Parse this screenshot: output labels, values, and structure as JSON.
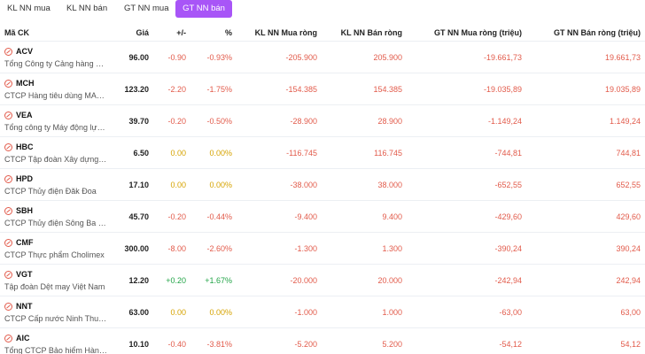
{
  "colors": {
    "accent": "#a855f7",
    "down": "#e25b4b",
    "ref": "#d6a300",
    "up": "#22a447"
  },
  "tabs": [
    {
      "label": "KL NN mua",
      "active": false
    },
    {
      "label": "KL NN bán",
      "active": false
    },
    {
      "label": "GT NN mua",
      "active": false
    },
    {
      "label": "GT NN bán",
      "active": true
    }
  ],
  "columns": [
    "Mã CK",
    "Giá",
    "+/-",
    "%",
    "KL NN Mua ròng",
    "KL NN Bán ròng",
    "GT NN Mua ròng (triệu)",
    "GT NN Bán ròng (triệu)"
  ],
  "rows": [
    {
      "code": "ACV",
      "name": "Tổng Công ty Cảng hàng không Việt Nam",
      "price": "96.00",
      "change": "-0.90",
      "pct": "-0.93%",
      "trend": "down",
      "buy": "-205.900",
      "sell": "205.900",
      "gbuy": "-19.661,73",
      "gsell": "19.661,73"
    },
    {
      "code": "MCH",
      "name": "CTCP Hàng tiêu dùng MASAN",
      "price": "123.20",
      "change": "-2.20",
      "pct": "-1.75%",
      "trend": "down",
      "buy": "-154.385",
      "sell": "154.385",
      "gbuy": "-19.035,89",
      "gsell": "19.035,89"
    },
    {
      "code": "VEA",
      "name": "Tổng công ty Máy động lực và Máy nông nghiệp",
      "price": "39.70",
      "change": "-0.20",
      "pct": "-0.50%",
      "trend": "down",
      "buy": "-28.900",
      "sell": "28.900",
      "gbuy": "-1.149,24",
      "gsell": "1.149,24"
    },
    {
      "code": "HBC",
      "name": "CTCP Tập đoàn Xây dựng Hòa Bình",
      "price": "6.50",
      "change": "0.00",
      "pct": "0.00%",
      "trend": "ref",
      "buy": "-116.745",
      "sell": "116.745",
      "gbuy": "-744,81",
      "gsell": "744,81"
    },
    {
      "code": "HPD",
      "name": "CTCP Thủy điện Đăk Đoa",
      "price": "17.10",
      "change": "0.00",
      "pct": "0.00%",
      "trend": "ref",
      "buy": "-38.000",
      "sell": "38.000",
      "gbuy": "-652,55",
      "gsell": "652,55"
    },
    {
      "code": "SBH",
      "name": "CTCP Thủy điện Sông Ba Hạ",
      "price": "45.70",
      "change": "-0.20",
      "pct": "-0.44%",
      "trend": "down",
      "buy": "-9.400",
      "sell": "9.400",
      "gbuy": "-429,60",
      "gsell": "429,60"
    },
    {
      "code": "CMF",
      "name": "CTCP Thực phẩm Cholimex",
      "price": "300.00",
      "change": "-8.00",
      "pct": "-2.60%",
      "trend": "down",
      "buy": "-1.300",
      "sell": "1.300",
      "gbuy": "-390,24",
      "gsell": "390,24"
    },
    {
      "code": "VGT",
      "name": "Tập đoàn Dệt may Việt Nam",
      "price": "12.20",
      "change": "+0.20",
      "pct": "+1.67%",
      "trend": "up",
      "buy": "-20.000",
      "sell": "20.000",
      "gbuy": "-242,94",
      "gsell": "242,94"
    },
    {
      "code": "NNT",
      "name": "CTCP Cấp nước Ninh Thuận",
      "price": "63.00",
      "change": "0.00",
      "pct": "0.00%",
      "trend": "ref",
      "buy": "-1.000",
      "sell": "1.000",
      "gbuy": "-63,00",
      "gsell": "63,00"
    },
    {
      "code": "AIC",
      "name": "Tổng CTCP Bảo hiểm Hàng không",
      "price": "10.10",
      "change": "-0.40",
      "pct": "-3.81%",
      "trend": "down",
      "buy": "-5.200",
      "sell": "5.200",
      "gbuy": "-54,12",
      "gsell": "54,12"
    }
  ]
}
